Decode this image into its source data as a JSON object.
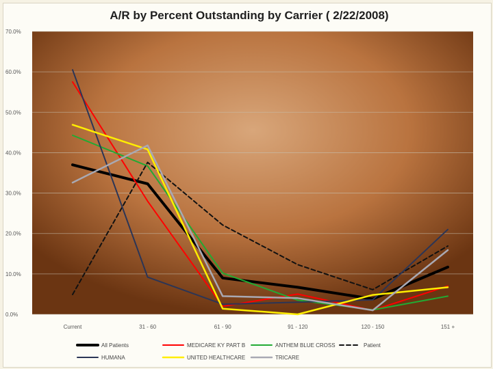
{
  "chart_data": {
    "type": "line",
    "title": "A/R by Percent Outstanding by Carrier ( 2/22/2008)",
    "xlabel": "",
    "ylabel": "",
    "categories": [
      "Current",
      "31 - 60",
      "61 - 90",
      "91 - 120",
      "120 - 150",
      "151 +"
    ],
    "ylim": [
      0,
      70
    ],
    "y_ticks": [
      "0.0%",
      "10.0%",
      "20.0%",
      "30.0%",
      "40.0%",
      "50.0%",
      "60.0%",
      "70.0%"
    ],
    "y_tick_values": [
      0,
      10,
      20,
      30,
      40,
      50,
      60,
      70
    ],
    "grid": true,
    "legend_position": "bottom",
    "series": [
      {
        "name": "All Patients",
        "color": "#000000",
        "width": 4,
        "dash": "",
        "values": [
          37.0,
          32.3,
          9.0,
          6.7,
          3.8,
          11.7
        ]
      },
      {
        "name": "MEDICARE KY PART B",
        "color": "#ff0000",
        "width": 2,
        "dash": "",
        "values": [
          57.5,
          28.0,
          2.0,
          5.0,
          1.0,
          7.0
        ]
      },
      {
        "name": "ANTHEM BLUE CROSS",
        "color": "#22aa33",
        "width": 2,
        "dash": "",
        "values": [
          44.3,
          36.7,
          10.2,
          3.5,
          1.1,
          4.5
        ]
      },
      {
        "name": "Patient",
        "color": "#111111",
        "width": 2,
        "dash": "6,4",
        "values": [
          4.9,
          37.6,
          22.1,
          12.3,
          6.1,
          16.9
        ]
      },
      {
        "name": "HUMANA",
        "color": "#2b3556",
        "width": 2,
        "dash": "",
        "values": [
          60.5,
          9.2,
          2.5,
          3.0,
          3.6,
          21.0
        ]
      },
      {
        "name": "UNITED HEALTHCARE",
        "color": "#ffee00",
        "width": 2.5,
        "dash": "",
        "values": [
          46.9,
          40.8,
          1.4,
          0.0,
          4.8,
          6.7
        ]
      },
      {
        "name": "TRICARE",
        "color": "#a9a9b3",
        "width": 2.5,
        "dash": "",
        "values": [
          32.6,
          41.8,
          4.5,
          4.0,
          1.0,
          15.9
        ]
      }
    ]
  },
  "colors": {
    "plot_background_center": "#d8a67a",
    "plot_background_edge": "#6b3512",
    "gridline": "#c7c0b0"
  }
}
